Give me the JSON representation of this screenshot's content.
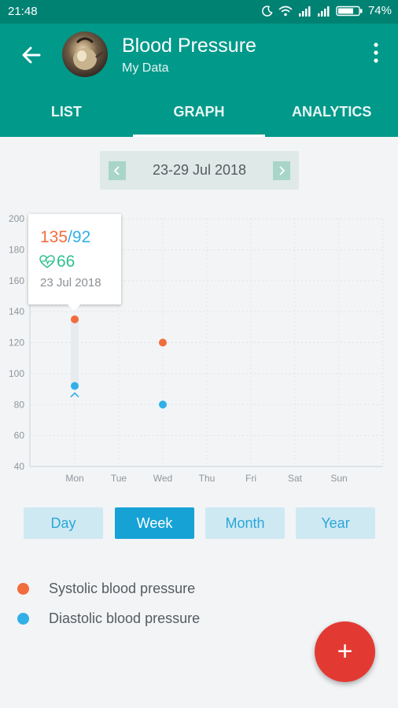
{
  "status_bar": {
    "time": "21:48",
    "battery": "74%"
  },
  "header": {
    "title": "Blood Pressure",
    "subtitle": "My Data"
  },
  "tabs": [
    {
      "label": "LIST",
      "active": false
    },
    {
      "label": "GRAPH",
      "active": true
    },
    {
      "label": "ANALYTICS",
      "active": false
    }
  ],
  "date_range": "23-29 Jul 2018",
  "tooltip": {
    "systolic": "135",
    "slash": "/",
    "diastolic": "92",
    "pulse": "66",
    "date": "23 Jul 2018"
  },
  "periods": [
    {
      "label": "Day",
      "active": false
    },
    {
      "label": "Week",
      "active": true
    },
    {
      "label": "Month",
      "active": false
    },
    {
      "label": "Year",
      "active": false
    }
  ],
  "legend": [
    {
      "label": "Systolic blood pressure",
      "color": "#f26d3d"
    },
    {
      "label": "Diastolic blood pressure",
      "color": "#31b0e8"
    }
  ],
  "fab": {
    "icon": "plus-icon",
    "label": "+"
  },
  "chart_data": {
    "type": "scatter",
    "categories": [
      "Mon",
      "Tue",
      "Wed",
      "Thu",
      "Fri",
      "Sat",
      "Sun"
    ],
    "ylim": [
      40,
      200
    ],
    "yticks": [
      40,
      60,
      80,
      100,
      120,
      140,
      160,
      180,
      200
    ],
    "grid": true,
    "series": [
      {
        "name": "Systolic blood pressure",
        "color": "#f26d3d",
        "points": [
          {
            "x": "Mon",
            "y": 135
          },
          {
            "x": "Wed",
            "y": 120
          }
        ]
      },
      {
        "name": "Diastolic blood pressure",
        "color": "#31b0e8",
        "points": [
          {
            "x": "Mon",
            "y": 92
          },
          {
            "x": "Wed",
            "y": 80
          }
        ]
      }
    ],
    "highlight": {
      "x": "Mon",
      "systolic": 135,
      "diastolic": 92
    }
  }
}
